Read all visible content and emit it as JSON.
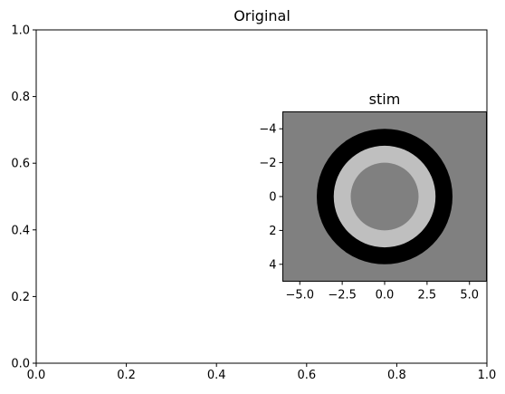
{
  "chart_data": [
    {
      "type": "line",
      "title": "Original",
      "xlabel": "",
      "ylabel": "",
      "xlim": [
        0,
        1
      ],
      "ylim": [
        0,
        1
      ],
      "xticks": [
        "0.0",
        "0.2",
        "0.4",
        "0.6",
        "0.8",
        "1.0"
      ],
      "yticks": [
        "0.0",
        "0.2",
        "0.4",
        "0.6",
        "0.8",
        "1.0"
      ],
      "series": [],
      "grid": false
    },
    {
      "type": "heatmap",
      "title": "stim",
      "xlim": [
        -6,
        6
      ],
      "ylim": [
        5,
        -5
      ],
      "xticks": [
        "−5.0",
        "−2.5",
        "0.0",
        "2.5",
        "5.0"
      ],
      "yticks": [
        "−4",
        "−2",
        "0",
        "2",
        "4"
      ],
      "colormap": "gray",
      "background_value_color": "#808080",
      "rings": [
        {
          "outer_radius": 4.0,
          "inner_radius": 3.0,
          "color": "#000000"
        },
        {
          "outer_radius": 3.0,
          "inner_radius": 2.0,
          "color": "#bfbfbf"
        },
        {
          "outer_radius": 2.0,
          "inner_radius": 0.0,
          "color": "#808080"
        }
      ],
      "center": [
        0,
        0
      ]
    }
  ]
}
